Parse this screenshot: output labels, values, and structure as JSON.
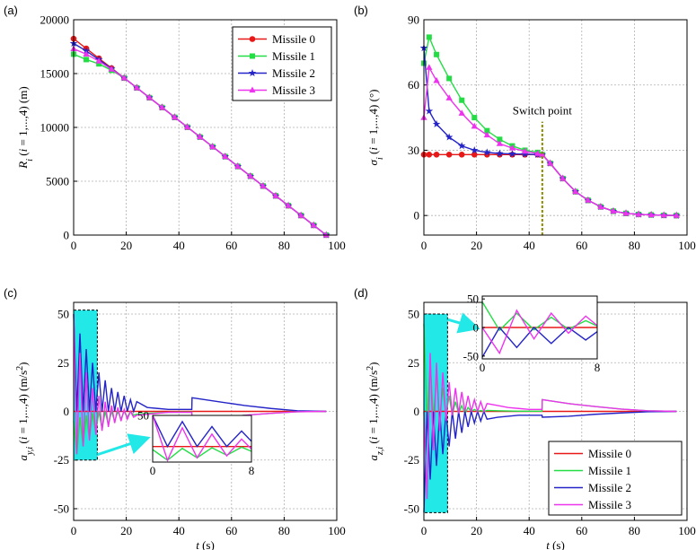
{
  "chart_data": [
    {
      "type": "line",
      "panel_label": "(a)",
      "ylabel": [
        {
          "t": "R",
          "s": "i"
        },
        {
          "t": "i",
          "s": "sub"
        },
        {
          "t": " (",
          "s": "n"
        },
        {
          "t": "i",
          "s": "i"
        },
        {
          "t": " = 1,...,4) (m)",
          "s": "n"
        }
      ],
      "xlim": [
        0,
        100
      ],
      "ylim": [
        0,
        20000
      ],
      "xticks": [
        0,
        20,
        40,
        60,
        80,
        100
      ],
      "yticks": [
        0,
        5000,
        10000,
        15000,
        20000
      ],
      "grid": true,
      "legend": "upper right",
      "x": [
        0,
        4.8,
        9.6,
        14.4,
        19.2,
        24,
        28.8,
        33.6,
        38.4,
        43.2,
        48,
        52.8,
        57.6,
        62.4,
        67.2,
        72,
        76.8,
        81.6,
        86.4,
        91.2,
        96
      ],
      "series": [
        {
          "name": "Missile 0",
          "color": "#e81818",
          "marker": "circle",
          "values": [
            18240,
            17328,
            16416,
            15504,
            14592,
            13680,
            12768,
            11856,
            10944,
            10032,
            9120,
            8208,
            7296,
            6384,
            5472,
            4560,
            3648,
            2736,
            1824,
            912,
            0
          ]
        },
        {
          "name": "Missile 1",
          "color": "#22dd44",
          "marker": "square",
          "values": [
            16800,
            16300,
            15900,
            15300,
            14592,
            13680,
            12768,
            11856,
            10944,
            10032,
            9120,
            8208,
            7296,
            6384,
            5472,
            4560,
            3648,
            2736,
            1824,
            912,
            0
          ]
        },
        {
          "name": "Missile 2",
          "color": "#2424c8",
          "marker": "star",
          "values": [
            17800,
            17100,
            16300,
            15450,
            14592,
            13680,
            12768,
            11856,
            10944,
            10032,
            9120,
            8208,
            7296,
            6384,
            5472,
            4560,
            3648,
            2736,
            1824,
            912,
            0
          ]
        },
        {
          "name": "Missile 3",
          "color": "#ee33ee",
          "marker": "triangle",
          "values": [
            17300,
            16800,
            16150,
            15400,
            14592,
            13680,
            12768,
            11856,
            10944,
            10032,
            9120,
            8208,
            7296,
            6384,
            5472,
            4560,
            3648,
            2736,
            1824,
            912,
            0
          ]
        }
      ]
    },
    {
      "type": "line",
      "panel_label": "(b)",
      "ylabel": [
        {
          "t": "σ",
          "s": "i"
        },
        {
          "t": "i",
          "s": "sub"
        },
        {
          "t": " (",
          "s": "n"
        },
        {
          "t": "i",
          "s": "i"
        },
        {
          "t": " = 1,...,4) (°)",
          "s": "n"
        }
      ],
      "xlim": [
        0,
        100
      ],
      "ylim": [
        -9,
        90
      ],
      "xticks": [
        0,
        20,
        40,
        60,
        80,
        100
      ],
      "yticks": [
        0,
        30,
        60,
        90
      ],
      "grid": true,
      "annotation": {
        "text": "Switch point",
        "x": 45,
        "color": "#8a8a00"
      },
      "x": [
        0,
        2,
        4.8,
        9.6,
        14.4,
        19.2,
        24,
        28.8,
        33.6,
        38.4,
        43.2,
        45,
        48,
        52.8,
        57.6,
        62.4,
        67.2,
        72,
        76.8,
        81.6,
        86.4,
        91.2,
        96
      ],
      "series": [
        {
          "name": "Missile 0",
          "color": "#e81818",
          "marker": "circle",
          "values": [
            28,
            28,
            28,
            28,
            28,
            28,
            28,
            28,
            28,
            28,
            28,
            28,
            24,
            17,
            11,
            7,
            4,
            2,
            1,
            0.5,
            0.3,
            0.1,
            0
          ]
        },
        {
          "name": "Missile 1",
          "color": "#22dd44",
          "marker": "square",
          "values": [
            70,
            82,
            74,
            63,
            53,
            45,
            39,
            35,
            32,
            30,
            29,
            28,
            24,
            17,
            11,
            7,
            4,
            2,
            1,
            0.5,
            0.3,
            0.1,
            0
          ]
        },
        {
          "name": "Missile 2",
          "color": "#2424c8",
          "marker": "star",
          "values": [
            77,
            48,
            42,
            36,
            32,
            30,
            29,
            28.5,
            28.3,
            28.2,
            28,
            28,
            24,
            17,
            11,
            7,
            4,
            2,
            1,
            0.5,
            0.3,
            0.1,
            0
          ]
        },
        {
          "name": "Missile 3",
          "color": "#ee33ee",
          "marker": "triangle",
          "values": [
            45,
            68,
            62,
            54,
            47,
            41,
            37,
            33,
            31,
            29.5,
            28.5,
            28,
            24,
            17,
            11,
            7,
            4,
            2,
            1,
            0.5,
            0.3,
            0.1,
            0
          ]
        }
      ]
    },
    {
      "type": "line",
      "panel_label": "(c)",
      "ylabel": [
        {
          "t": "a",
          "s": "i"
        },
        {
          "t": "y,i",
          "s": "sub"
        },
        {
          "t": " (",
          "s": "n"
        },
        {
          "t": "i",
          "s": "i"
        },
        {
          "t": " = 1,...,4) (m/s",
          "s": "n"
        },
        {
          "t": "2",
          "s": "sup"
        },
        {
          "t": ")",
          "s": "n"
        }
      ],
      "xlabel": [
        {
          "t": "t",
          "s": "i"
        },
        {
          "t": " (s)",
          "s": "n"
        }
      ],
      "xlim": [
        0,
        100
      ],
      "ylim": [
        -56,
        56
      ],
      "xticks": [
        0,
        20,
        40,
        60,
        80,
        100
      ],
      "yticks": [
        -50,
        -25,
        0,
        25,
        50
      ],
      "grid": true,
      "zoom_box": {
        "x": [
          0,
          9
        ],
        "y": [
          -25,
          52
        ],
        "color": "#22e8e8"
      },
      "inset": {
        "xlim": [
          0,
          8
        ],
        "ylim": [
          -25,
          50
        ],
        "xticks": [
          0,
          8
        ],
        "yticks": [
          50
        ]
      },
      "x": [
        0,
        1.2,
        2.4,
        3.6,
        4.8,
        6,
        7.2,
        8.4,
        9.6,
        10.8,
        12,
        13.2,
        14.4,
        15.6,
        16.8,
        18,
        19.2,
        20.4,
        21.6,
        22.8,
        24,
        28,
        32,
        36,
        40,
        44.9,
        45,
        55,
        65,
        75,
        85,
        96
      ],
      "series": [
        {
          "name": "Missile 0",
          "color": "#e81818",
          "values": [
            0,
            0,
            0,
            0,
            0,
            0,
            0,
            0,
            0,
            0,
            0,
            0,
            0,
            0,
            0,
            0,
            0,
            0,
            0,
            0,
            0,
            0,
            0,
            0,
            0,
            0,
            0,
            0,
            0,
            0,
            0,
            0
          ]
        },
        {
          "name": "Missile 1",
          "color": "#22dd44",
          "values": [
            -5,
            -22,
            -3,
            -18,
            -2,
            -14,
            -1,
            -11,
            0,
            -9,
            0,
            -7,
            0,
            -5,
            0,
            -4,
            0,
            -3,
            0,
            -2,
            -1.5,
            -1,
            -0.8,
            -0.5,
            -0.4,
            -0.4,
            -5,
            -3.5,
            -2,
            -1,
            -0.2,
            0
          ]
        },
        {
          "name": "Missile 2",
          "color": "#2424c8",
          "values": [
            50,
            0,
            40,
            0,
            32,
            0,
            25,
            0,
            20,
            0,
            16,
            0,
            12,
            0,
            10,
            0,
            8,
            0,
            6,
            0,
            5,
            2,
            1.5,
            1,
            1,
            1,
            7,
            5,
            3,
            1.5,
            0.3,
            0
          ]
        },
        {
          "name": "Missile 3",
          "color": "#ee33ee",
          "values": [
            50,
            -22,
            30,
            -18,
            20,
            -15,
            12,
            -12,
            8,
            -10,
            5,
            -8,
            3,
            -6,
            2,
            -5,
            1,
            -4,
            0,
            -3,
            -2,
            -1.5,
            -1,
            -0.5,
            -0.5,
            -0.5,
            -5,
            -3.5,
            -2,
            -1,
            -0.2,
            0
          ]
        }
      ]
    },
    {
      "type": "line",
      "panel_label": "(d)",
      "ylabel": [
        {
          "t": "a",
          "s": "i"
        },
        {
          "t": "z,i",
          "s": "sub"
        },
        {
          "t": " (",
          "s": "n"
        },
        {
          "t": "i",
          "s": "i"
        },
        {
          "t": " = 1,...,4) (m/s",
          "s": "n"
        },
        {
          "t": "2",
          "s": "sup"
        },
        {
          "t": ")",
          "s": "n"
        }
      ],
      "xlabel": [
        {
          "t": "t",
          "s": "i"
        },
        {
          "t": " (s)",
          "s": "n"
        }
      ],
      "xlim": [
        0,
        100
      ],
      "ylim": [
        -56,
        56
      ],
      "xticks": [
        0,
        20,
        40,
        60,
        80,
        100
      ],
      "yticks": [
        -50,
        -25,
        0,
        25,
        50
      ],
      "grid": true,
      "legend": "lower right",
      "zoom_box": {
        "x": [
          0,
          9
        ],
        "y": [
          -52,
          50
        ],
        "color": "#22e8e8"
      },
      "inset": {
        "xlim": [
          0,
          8
        ],
        "ylim": [
          -55,
          55
        ],
        "xticks": [
          0,
          8
        ],
        "yticks": [
          -50,
          0,
          50
        ]
      },
      "x": [
        0,
        1.2,
        2.4,
        3.6,
        4.8,
        6,
        7.2,
        8.4,
        9.6,
        10.8,
        12,
        13.2,
        14.4,
        15.6,
        16.8,
        18,
        19.2,
        20.4,
        21.6,
        22.8,
        24,
        28,
        32,
        36,
        40,
        44.9,
        45,
        55,
        65,
        75,
        85,
        96
      ],
      "series": [
        {
          "name": "Missile 0",
          "color": "#e81818",
          "values": [
            0,
            0,
            0,
            0,
            0,
            0,
            0,
            0,
            0,
            0,
            0,
            0,
            0,
            0,
            0,
            0,
            0,
            0,
            0,
            0,
            0,
            0,
            0,
            0,
            0,
            0,
            0,
            0,
            0,
            0,
            0,
            0
          ]
        },
        {
          "name": "Missile 1",
          "color": "#22dd44",
          "values": [
            45,
            -5,
            25,
            -4,
            18,
            -3,
            12,
            -2,
            8,
            -2,
            5,
            -1,
            3,
            -1,
            2,
            0,
            1,
            0,
            0.5,
            0,
            0.5,
            0.3,
            0.2,
            0.1,
            0.1,
            0.1,
            6,
            4,
            2.5,
            1.2,
            0.3,
            0
          ]
        },
        {
          "name": "Missile 2",
          "color": "#2424c8",
          "values": [
            -52,
            0,
            -35,
            0,
            -28,
            0,
            -22,
            0,
            -18,
            0,
            -14,
            0,
            -11,
            0,
            -8,
            0,
            -6,
            0,
            -5,
            0,
            -4,
            -3,
            -2.5,
            -2,
            -2,
            -2,
            -3,
            -2.5,
            -1.5,
            -0.8,
            -0.2,
            0
          ]
        },
        {
          "name": "Missile 3",
          "color": "#ee33ee",
          "values": [
            0,
            -45,
            30,
            -20,
            25,
            -10,
            20,
            -5,
            15,
            -2,
            12,
            -1,
            10,
            0,
            8,
            0,
            6,
            0,
            5,
            0,
            4,
            3,
            2,
            1.5,
            1,
            1,
            6,
            4,
            2.5,
            1.2,
            0.3,
            0
          ]
        }
      ]
    }
  ]
}
